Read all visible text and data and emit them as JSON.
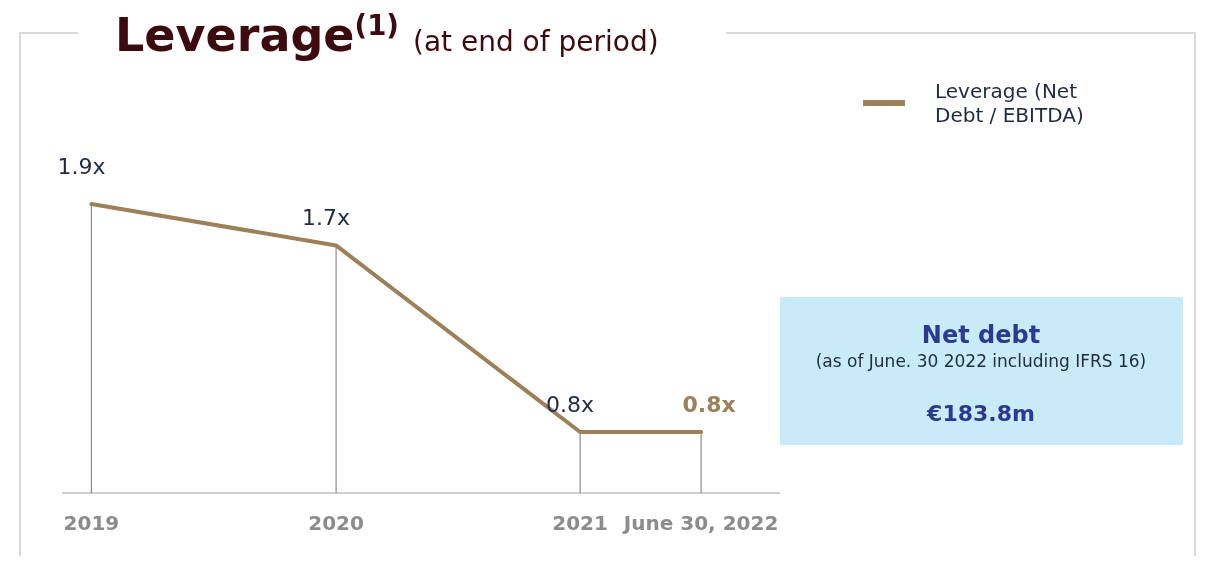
{
  "chart_data": {
    "type": "line",
    "title": "Leverage$^{(1)}$",
    "subtitle": "(at end of period)",
    "x": [
      "2019-12-31",
      "2020-12-31",
      "2021-12-31",
      "2022-06-30"
    ],
    "xlim": [
      "2019-11-17",
      "2022-10-26"
    ],
    "xticks": [
      {
        "value": "2019-12-31",
        "label": "2019"
      },
      {
        "value": "2020-12-31",
        "label": "2020"
      },
      {
        "value": "2021-12-31",
        "label": "2021"
      },
      {
        "value": "2022-06-30",
        "label": "June 30, 2022"
      }
    ],
    "tick_labels": "x",
    "series": [
      {
        "name": "Leverage (Net Debt / EBITDA)",
        "color": "#9c8057",
        "values": [
          1.9,
          1.7,
          0.8,
          0.8
        ],
        "value_labels": [
          "1.9x",
          "1.7x",
          "0.8x",
          "0.8x"
        ]
      }
    ],
    "legend": "top right",
    "annotations": [
      "Net debt",
      "(as of June. 30 2022 including IFRS 16)",
      "€183.8m"
    ]
  }
}
